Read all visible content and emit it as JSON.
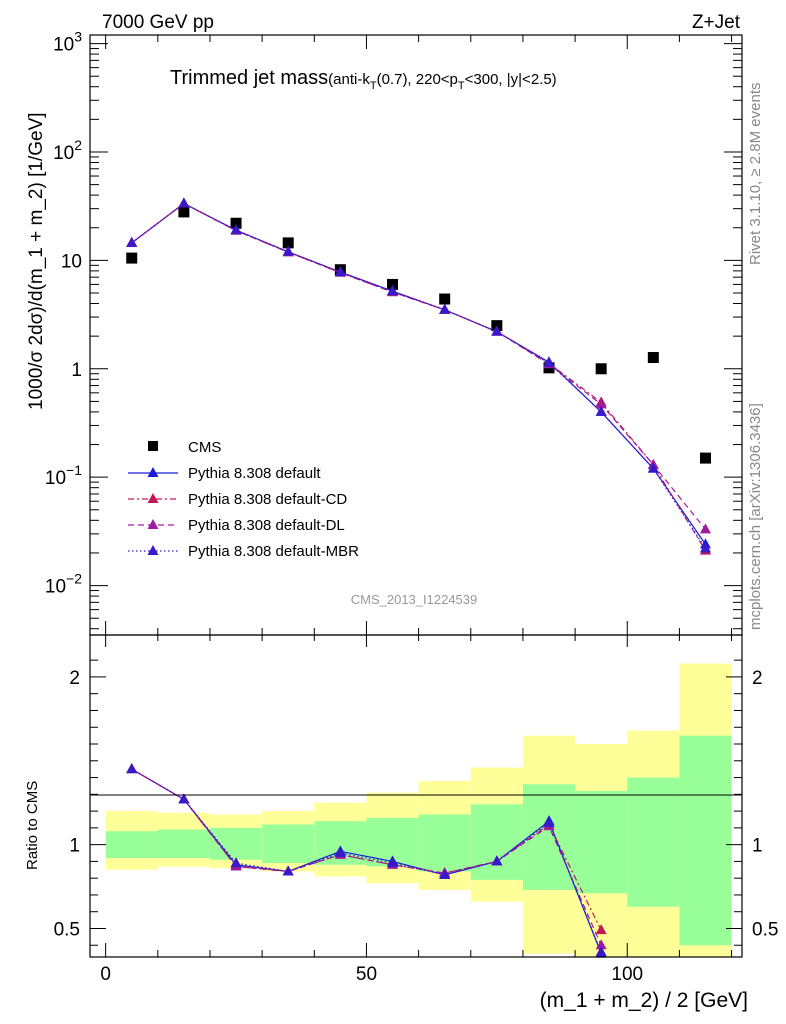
{
  "header": {
    "left": "7000 GeV pp",
    "right": "Z+Jet"
  },
  "title": {
    "main": "Trimmed jet mass",
    "sub_parts": [
      "(anti-k",
      "T",
      "(0.7), 220<p",
      "T",
      "<300, |y|<2.5)"
    ]
  },
  "side_text": {
    "rivet": "Rivet 3.1.10, ≥ 2.8M events",
    "mcplots": "mcplots.cern.ch [arXiv:1306.3436]"
  },
  "watermark": "CMS_2013_I1224539",
  "axes": {
    "ylabel_main": "1000/σ 2dσ)/d(m_1 + m_2) [1/GeV]",
    "ylabel_ratio": "Ratio to CMS",
    "xlabel": "(m_1 + m_2) / 2 [GeV]",
    "x_ticks": [
      "0",
      "50",
      "100"
    ],
    "y_ticks_main": [
      {
        "base": "10",
        "exp": "3"
      },
      {
        "base": "10",
        "exp": "2"
      },
      {
        "base": "10",
        "exp": ""
      },
      {
        "base": "1",
        "exp": ""
      },
      {
        "base": "10",
        "exp": "−1"
      },
      {
        "base": "10",
        "exp": "−2"
      }
    ],
    "y_ticks_ratio": [
      "2",
      "1",
      "0.5"
    ]
  },
  "legend": {
    "placement": "bottom-left",
    "entries": [
      "CMS",
      "Pythia 8.308 default",
      "Pythia 8.308 default-CD",
      "Pythia 8.308 default-DL",
      "Pythia 8.308 default-MBR"
    ]
  },
  "colors": {
    "data": "#000000",
    "default": "#1a1adb",
    "cd": "#c0185a",
    "dl": "#a01aa0",
    "mbr": "#3a1ac8",
    "band_inner": "#99ff99",
    "band_outer": "#ffff99"
  },
  "chart_data": [
    {
      "type": "scatter",
      "title": "Trimmed jet mass",
      "log_y": true,
      "xlim": [
        -3,
        122
      ],
      "ylim": [
        0.0035,
        1200
      ],
      "x": [
        5,
        15,
        25,
        35,
        45,
        55,
        65,
        75,
        85,
        95,
        105,
        115
      ],
      "series": [
        {
          "name": "CMS",
          "style": "square",
          "values": [
            10.5,
            28,
            22,
            14.5,
            8.2,
            6,
            4.4,
            2.5,
            1.02,
            1.0,
            1.27,
            0.15
          ]
        },
        {
          "name": "Pythia 8.308 default",
          "style": "solid",
          "values": [
            14.5,
            33.5,
            19,
            12,
            7.8,
            5.2,
            3.5,
            2.2,
            1.15,
            0.4,
            0.12,
            0.024
          ]
        },
        {
          "name": "Pythia 8.308 default-CD",
          "style": "dashdot",
          "values": [
            14.5,
            33.5,
            18.8,
            11.9,
            7.7,
            5.1,
            3.5,
            2.2,
            1.12,
            0.49,
            0.13,
            0.021
          ]
        },
        {
          "name": "Pythia 8.308 default-DL",
          "style": "dashed",
          "values": [
            14.5,
            33.5,
            18.8,
            11.9,
            7.7,
            5.1,
            3.5,
            2.2,
            1.1,
            0.47,
            0.13,
            0.033
          ]
        },
        {
          "name": "Pythia 8.308 default-MBR",
          "style": "dotted",
          "values": [
            14.5,
            33.5,
            19,
            12,
            7.8,
            5.2,
            3.5,
            2.2,
            1.13,
            0.4,
            0.12,
            0.022
          ]
        }
      ]
    },
    {
      "type": "line",
      "ylabel": "Ratio to CMS",
      "xlim": [
        -3,
        122
      ],
      "ylim": [
        0.33,
        2.25
      ],
      "x": [
        5,
        15,
        25,
        35,
        45,
        55,
        65,
        75,
        85,
        95,
        105,
        115
      ],
      "bands": {
        "bin_edges": [
          0,
          10,
          20,
          30,
          40,
          50,
          60,
          70,
          80,
          90,
          100,
          110,
          120
        ],
        "inner_low": [
          0.92,
          0.92,
          0.91,
          0.89,
          0.88,
          0.87,
          0.84,
          0.79,
          0.73,
          0.71,
          0.63,
          0.4
        ],
        "inner_high": [
          1.08,
          1.09,
          1.1,
          1.12,
          1.14,
          1.16,
          1.18,
          1.24,
          1.36,
          1.32,
          1.4,
          1.65
        ],
        "outer_low": [
          0.85,
          0.87,
          0.86,
          0.84,
          0.81,
          0.77,
          0.73,
          0.66,
          0.35,
          0.33,
          0.33,
          0.33
        ],
        "outer_high": [
          1.2,
          1.19,
          1.18,
          1.2,
          1.25,
          1.31,
          1.38,
          1.46,
          1.65,
          1.6,
          1.68,
          2.08
        ]
      },
      "series": [
        {
          "name": "Pythia 8.308 default",
          "style": "solid",
          "values": [
            1.45,
            1.27,
            0.88,
            0.84,
            0.96,
            0.9,
            0.82,
            0.9,
            1.14,
            0.35,
            null,
            null
          ]
        },
        {
          "name": "Pythia 8.308 default-CD",
          "style": "dashdot",
          "values": [
            1.45,
            1.27,
            0.87,
            0.84,
            0.94,
            0.88,
            0.83,
            0.9,
            1.12,
            0.49,
            null,
            null
          ]
        },
        {
          "name": "Pythia 8.308 default-DL",
          "style": "dashed",
          "values": [
            1.45,
            1.27,
            0.87,
            0.84,
            0.94,
            0.88,
            0.83,
            0.9,
            1.11,
            0.4,
            null,
            null
          ]
        },
        {
          "name": "Pythia 8.308 default-MBR",
          "style": "dotted",
          "values": [
            1.45,
            1.27,
            0.89,
            0.84,
            0.95,
            0.89,
            0.82,
            0.9,
            1.13,
            0.36,
            null,
            null
          ]
        }
      ]
    }
  ]
}
